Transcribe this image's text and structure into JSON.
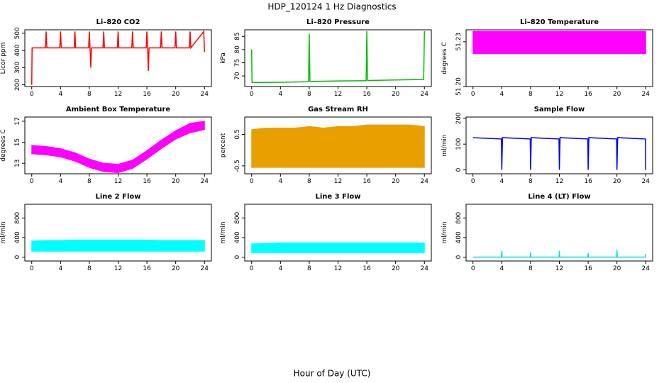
{
  "title": "HDP_120124  1 Hz Diagnostics",
  "x_label": "Hour of Day (UTC)",
  "chart_data": [
    {
      "type": "line",
      "title": "Li–820 CO2",
      "y_label": "Licor ppm",
      "color": "#ff0000",
      "x": [
        0,
        0.05,
        0.1,
        1.9,
        2,
        2.1,
        3.9,
        4,
        4.1,
        5.9,
        6,
        6.1,
        7.9,
        8,
        8.1,
        8.2,
        8.3,
        9.9,
        10,
        10.1,
        11.9,
        12,
        12.1,
        13.9,
        14,
        14.1,
        15.9,
        16,
        16.1,
        16.2,
        16.3,
        17.9,
        18,
        18.1,
        19.9,
        20,
        20.1,
        21.9,
        22,
        22.1,
        23.9,
        24
      ],
      "values": [
        200,
        415,
        415,
        415,
        510,
        415,
        415,
        510,
        415,
        415,
        510,
        415,
        415,
        510,
        415,
        300,
        415,
        415,
        510,
        415,
        415,
        510,
        415,
        415,
        510,
        415,
        415,
        510,
        415,
        280,
        415,
        415,
        510,
        415,
        415,
        510,
        415,
        415,
        510,
        415,
        510,
        390
      ],
      "xlim": [
        -0.96,
        24.96
      ],
      "xticks": [
        0,
        4,
        8,
        12,
        16,
        20,
        24
      ],
      "ylim": [
        190,
        520
      ],
      "yticks": [
        200,
        300,
        400,
        500
      ]
    },
    {
      "type": "line",
      "title": "Li–820 Pressure",
      "y_label": "kPa",
      "color": "#00c000",
      "x": [
        0,
        0.05,
        0.1,
        4,
        7.9,
        8,
        8.1,
        12,
        15.9,
        16,
        16.1,
        20,
        23.9,
        24
      ],
      "values": [
        80,
        67.5,
        67.5,
        67.6,
        67.8,
        86,
        67.9,
        68.1,
        68.2,
        87,
        68.3,
        68.5,
        68.7,
        87
      ],
      "xlim": [
        -0.96,
        24.96
      ],
      "xticks": [
        0,
        4,
        8,
        12,
        16,
        20,
        24
      ],
      "ylim": [
        66,
        87.5
      ],
      "yticks": [
        70,
        75,
        80,
        85
      ]
    },
    {
      "type": "band",
      "title": "Li–820 Temperature",
      "y_label": "degrees C",
      "color": "#ff00ff",
      "x": [
        0,
        2,
        4,
        6,
        8,
        10,
        12,
        14,
        16,
        18,
        20,
        22,
        24
      ],
      "low": [
        51.222,
        51.222,
        51.222,
        51.222,
        51.222,
        51.222,
        51.222,
        51.222,
        51.222,
        51.222,
        51.222,
        51.222,
        51.222
      ],
      "high": [
        51.237,
        51.237,
        51.237,
        51.237,
        51.237,
        51.237,
        51.237,
        51.237,
        51.237,
        51.237,
        51.237,
        51.237,
        51.237
      ],
      "xlim": [
        -0.96,
        24.96
      ],
      "xticks": [
        0,
        4,
        8,
        12,
        16,
        20,
        24
      ],
      "ylim": [
        51.2,
        51.238
      ],
      "yticks": [
        {
          "value": 51.2,
          "label": "51.20"
        },
        {
          "value": 51.23,
          "label": "51.23"
        }
      ]
    },
    {
      "type": "band",
      "title": "Ambient Box Temperature",
      "y_label": "degrees C",
      "color": "#ff00ff",
      "x": [
        0,
        2,
        4,
        6,
        8,
        10,
        12,
        14,
        16,
        18,
        20,
        22,
        24
      ],
      "low": [
        13.9,
        13.8,
        13.6,
        13.2,
        12.6,
        12.2,
        12.1,
        12.5,
        13.4,
        14.4,
        15.3,
        15.9,
        16.2
      ],
      "high": [
        14.7,
        14.6,
        14.4,
        14.0,
        13.4,
        13.0,
        12.9,
        13.3,
        14.2,
        15.2,
        16.1,
        16.8,
        17.0
      ],
      "xlim": [
        -0.96,
        24.96
      ],
      "xticks": [
        0,
        4,
        8,
        12,
        16,
        20,
        24
      ],
      "ylim": [
        12,
        17.4
      ],
      "yticks": [
        13,
        15,
        17
      ]
    },
    {
      "type": "band",
      "title": "Gas Stream RH",
      "y_label": "percent",
      "color": "#e8a000",
      "x": [
        0,
        2,
        4,
        6,
        8,
        10,
        12,
        14,
        16,
        18,
        20,
        22,
        24
      ],
      "low": [
        -0.55,
        -0.55,
        -0.55,
        -0.55,
        -0.55,
        -0.55,
        -0.55,
        -0.55,
        -0.55,
        -0.55,
        -0.55,
        -0.55,
        -0.55
      ],
      "high": [
        0.65,
        0.7,
        0.7,
        0.7,
        0.75,
        0.7,
        0.75,
        0.75,
        0.8,
        0.8,
        0.8,
        0.8,
        0.75
      ],
      "xlim": [
        -0.96,
        24.96
      ],
      "xticks": [
        0,
        4,
        8,
        12,
        16,
        20,
        24
      ],
      "ylim": [
        -0.75,
        1.05
      ],
      "yticks": [
        -0.5,
        0.5
      ]
    },
    {
      "type": "line",
      "title": "Sample Flow",
      "y_label": "ml/min",
      "color": "#0000ff",
      "x": [
        0,
        3.95,
        4,
        4.1,
        7.95,
        8,
        8.1,
        11.95,
        12,
        12.1,
        15.95,
        16,
        16.1,
        19.95,
        20,
        20.1,
        23.95,
        24
      ],
      "values": [
        125,
        120,
        0,
        125,
        120,
        0,
        125,
        120,
        0,
        125,
        120,
        0,
        125,
        120,
        0,
        125,
        120,
        0
      ],
      "xlim": [
        -0.96,
        24.96
      ],
      "xticks": [
        0,
        4,
        8,
        12,
        16,
        20,
        24
      ],
      "ylim": [
        -15,
        205
      ],
      "yticks": [
        0,
        100,
        200
      ]
    },
    {
      "type": "band",
      "title": "Line 2 Flow",
      "y_label": "ml/min",
      "color": "#00ffff",
      "x": [
        0,
        2,
        4,
        6,
        8,
        10,
        12,
        14,
        16,
        18,
        20,
        22,
        24
      ],
      "low": [
        120,
        120,
        120,
        120,
        120,
        120,
        120,
        120,
        120,
        120,
        120,
        120,
        120
      ],
      "high": [
        330,
        340,
        340,
        350,
        350,
        350,
        350,
        350,
        350,
        340,
        340,
        340,
        340
      ],
      "xlim": [
        -0.96,
        24.96
      ],
      "xticks": [
        0,
        4,
        8,
        12,
        16,
        20,
        24
      ],
      "ylim": [
        -80,
        1080
      ],
      "yticks": [
        0,
        400,
        800
      ]
    },
    {
      "type": "band",
      "title": "Line 3 Flow",
      "y_label": "ml/min",
      "color": "#00ffff",
      "x": [
        0,
        2,
        4,
        6,
        8,
        10,
        12,
        14,
        16,
        18,
        20,
        22,
        24
      ],
      "low": [
        90,
        90,
        90,
        90,
        90,
        90,
        90,
        90,
        90,
        90,
        90,
        90,
        90
      ],
      "high": [
        270,
        280,
        290,
        290,
        290,
        290,
        290,
        290,
        290,
        290,
        290,
        290,
        290
      ],
      "xlim": [
        -0.96,
        24.96
      ],
      "xticks": [
        0,
        4,
        8,
        12,
        16,
        20,
        24
      ],
      "ylim": [
        -80,
        1080
      ],
      "yticks": [
        0,
        400,
        800
      ]
    },
    {
      "type": "line",
      "title": "Line 4 (LT) Flow",
      "y_label": "ml/min",
      "color": "#00e0e0",
      "x": [
        0,
        3.95,
        4,
        4.05,
        7.95,
        8,
        8.05,
        11.95,
        12,
        12.05,
        15.95,
        16,
        16.05,
        19.95,
        20,
        20.05,
        23.95,
        24
      ],
      "values": [
        0,
        0,
        130,
        0,
        0,
        90,
        0,
        0,
        130,
        0,
        0,
        80,
        0,
        0,
        140,
        0,
        0,
        70
      ],
      "xlim": [
        -0.96,
        24.96
      ],
      "xticks": [
        0,
        4,
        8,
        12,
        16,
        20,
        24
      ],
      "ylim": [
        -80,
        1080
      ],
      "yticks": [
        0,
        400,
        800
      ]
    }
  ]
}
